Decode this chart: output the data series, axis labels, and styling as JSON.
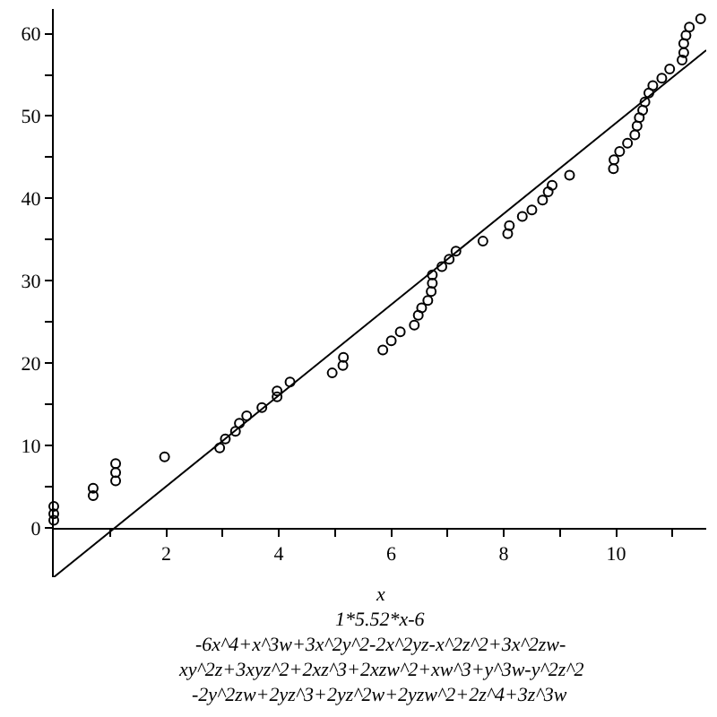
{
  "chart_data": {
    "type": "scatter",
    "xlabel": "x",
    "xlim": [
      0,
      11.6
    ],
    "ylim": [
      -6,
      63
    ],
    "xticks": [
      {
        "value": 1,
        "label": null
      },
      2,
      {
        "value": 3,
        "label": null
      },
      4,
      {
        "value": 5,
        "label": null
      },
      6,
      {
        "value": 7,
        "label": null
      },
      8,
      {
        "value": 9,
        "label": null
      },
      10,
      {
        "value": 11,
        "label": null
      }
    ],
    "yticks": [
      0,
      {
        "value": 5,
        "label": null
      },
      10,
      {
        "value": 15,
        "label": null
      },
      20,
      {
        "value": 25,
        "label": null
      },
      30,
      {
        "value": 35,
        "label": null
      },
      40,
      {
        "value": 45,
        "label": null
      },
      50,
      {
        "value": 55,
        "label": null
      },
      60
    ],
    "marker": "circle",
    "series": [
      {
        "color": "#000000",
        "x": [
          0,
          0,
          0,
          0.7,
          0.7,
          1.1,
          1.1,
          1.1,
          1.97,
          2.95,
          3.05,
          3.23,
          3.3,
          3.43,
          3.7,
          3.97,
          3.97,
          4.2,
          4.95,
          5.14,
          5.15,
          5.85,
          6.0,
          6.16,
          6.41,
          6.48,
          6.54,
          6.65,
          6.71,
          6.73,
          6.73,
          6.9,
          7.03,
          7.15,
          7.63,
          8.07,
          8.1,
          8.33,
          8.5,
          8.69,
          8.79,
          8.86,
          9.17,
          9.95,
          9.96,
          10.06,
          10.2,
          10.33,
          10.37,
          10.41,
          10.47,
          10.51,
          10.58,
          10.65,
          10.81,
          10.95,
          11.17,
          11.2,
          11.2,
          11.24,
          11.3,
          11.5
        ],
        "values": [
          0.9,
          1.7,
          2.6,
          3.9,
          4.8,
          5.7,
          6.7,
          7.8,
          8.6,
          9.7,
          10.8,
          11.7,
          12.7,
          13.6,
          14.6,
          15.9,
          16.6,
          17.7,
          18.8,
          19.7,
          20.7,
          21.6,
          22.7,
          23.8,
          24.6,
          25.8,
          26.7,
          27.6,
          28.7,
          29.7,
          30.7,
          31.7,
          32.6,
          33.6,
          34.8,
          35.7,
          36.7,
          37.8,
          38.6,
          39.8,
          40.8,
          41.6,
          42.8,
          43.6,
          44.7,
          45.7,
          46.7,
          47.7,
          48.8,
          49.8,
          50.7,
          51.7,
          52.8,
          53.7,
          54.6,
          55.7,
          56.8,
          57.7,
          58.8,
          59.8,
          60.8,
          61.8
        ]
      },
      {
        "type": "line",
        "color": "#000000",
        "marker": "none",
        "x": [
          0,
          11.6
        ],
        "values": [
          -6,
          58
        ]
      }
    ],
    "annotations": [
      "1*5.52*x-6",
      "-6x^4+x^3w+3x^2y^2-2x^2yz-x^2z^2+3x^2zw-",
      "xy^2z+3xyz^2+2xz^3+2xzw^2+xw^3+y^3w-y^2z^2",
      "-2y^2zw+2yz^3+2yz^2w+2yzw^2+2z^4+3z^3w"
    ]
  }
}
